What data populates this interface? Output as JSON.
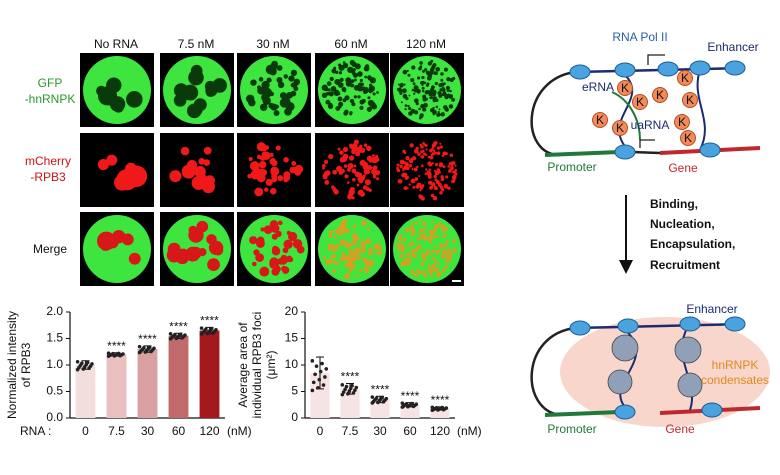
{
  "figure_panels": {
    "columns": [
      "No RNA",
      "7.5 nM",
      "30 nM",
      "60 nM",
      "120 nM"
    ],
    "rows": [
      [
        "GFP",
        "-hnRNPK"
      ],
      [
        "mCherry",
        "-RPB3"
      ],
      [
        "Merge"
      ]
    ]
  },
  "chart_data": [
    {
      "type": "bar",
      "ylabel": [
        "Normalized intensity",
        "of RPB3"
      ],
      "x_prefix": "RNA :",
      "x_unit": "(nM)",
      "categories": [
        "0",
        "7.5",
        "30",
        "60",
        "120"
      ],
      "values": [
        1.0,
        1.2,
        1.3,
        1.55,
        1.65
      ],
      "errors": [
        0.08,
        0.03,
        0.06,
        0.05,
        0.06
      ],
      "significance": [
        null,
        "****",
        "****",
        "****",
        "****"
      ],
      "colors": [
        "#f3dede",
        "#e9bfbf",
        "#d8a0a0",
        "#c2696b",
        "#a3191e"
      ],
      "ylim": [
        0,
        2.0
      ],
      "yticks": [
        {
          "value": 0,
          "label": "0.0"
        },
        0.5,
        {
          "value": 1.0,
          "label": "1.0"
        },
        1.5,
        {
          "value": 2.0,
          "label": "2.0"
        }
      ]
    },
    {
      "type": "bar",
      "ylabel": [
        "Average area of",
        "individual RPB3 foci",
        "(μm²)"
      ],
      "x_unit": "(nM)",
      "categories": [
        "0",
        "7.5",
        "30",
        "60",
        "120"
      ],
      "values": [
        8.5,
        5.5,
        3.5,
        2.5,
        1.8
      ],
      "errors": [
        3.0,
        1.0,
        0.6,
        0.4,
        0.3
      ],
      "significance": [
        null,
        "****",
        "****",
        "****",
        "****"
      ],
      "colors": [
        "#f6e3e3",
        "#f6e3e3",
        "#f6e3e3",
        "#f6e3e3",
        "#f6e3e3"
      ],
      "ylim": [
        0,
        20
      ],
      "yticks": [
        0,
        5,
        10,
        15,
        20
      ]
    }
  ],
  "diagram": {
    "top": {
      "pol": "RNA Pol II",
      "enhancer": "Enhancer",
      "erna": "eRNA",
      "uarna": "uaRNA",
      "promoter": "Promoter",
      "gene": "Gene",
      "k": "K"
    },
    "steps": [
      "Binding,",
      "Nucleation,",
      "Encapsulation,",
      "Recruitment"
    ],
    "bottom": {
      "enhancer": "Enhancer",
      "condensates": [
        "hnRNPK",
        "condensates"
      ],
      "promoter": "Promoter",
      "gene": "Gene"
    }
  }
}
